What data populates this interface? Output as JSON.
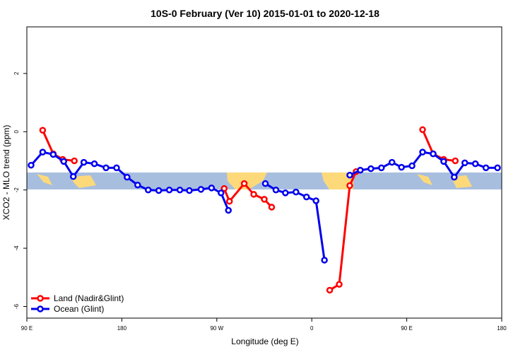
{
  "chart_data": {
    "type": "line",
    "title": "10S-0 February (Ver 10)   2015-01-01 to 2020-12-18",
    "x_label": "Longitude (deg E)",
    "y_label": "XCO2 - MLO trend (ppm)",
    "xlim": [
      90,
      540
    ],
    "xticks": [
      {
        "value": 90,
        "label": "90 E"
      },
      {
        "value": 180,
        "label": "180"
      },
      {
        "value": 270,
        "label": "90 W"
      },
      {
        "value": 360,
        "label": "0"
      },
      {
        "value": 450,
        "label": "90 E"
      },
      {
        "value": 540,
        "label": "180"
      }
    ],
    "ylim": [
      -6.4,
      3.6
    ],
    "yticks": [
      -6,
      -4,
      -2,
      0,
      2
    ],
    "legend": "bottom-left",
    "series": [
      {
        "name": "Land (Nadir&Glint)",
        "color": "#ff0000",
        "x": [
          105,
          115,
          124,
          135,
          null,
          277,
          282,
          296,
          305,
          315,
          322,
          null,
          377,
          386,
          396,
          402,
          null,
          465,
          475,
          485,
          496
        ],
        "values": [
          0.05,
          -0.76,
          -0.95,
          -1.0,
          null,
          -1.95,
          -2.39,
          -1.78,
          -2.15,
          -2.32,
          -2.59,
          null,
          -5.44,
          -5.24,
          -1.85,
          -1.37,
          null,
          0.07,
          -0.76,
          -0.95,
          -1.0
        ]
      },
      {
        "name": "Ocean (Glint)",
        "color": "#0000ee",
        "x": [
          94,
          105,
          115,
          125,
          134,
          144,
          154,
          165,
          175,
          185,
          195,
          205,
          215,
          225,
          235,
          244,
          255,
          265,
          274,
          281,
          null,
          316,
          326,
          335,
          345,
          355,
          364,
          372,
          null,
          396,
          406,
          416,
          426,
          436,
          445,
          455,
          465,
          475,
          485,
          495,
          505,
          515,
          525,
          536
        ],
        "values": [
          -1.15,
          -0.7,
          -0.78,
          -1.02,
          -1.54,
          -1.05,
          -1.1,
          -1.24,
          -1.24,
          -1.56,
          -1.83,
          -2.0,
          -2.02,
          -2.0,
          -2.0,
          -2.02,
          -1.98,
          -1.93,
          -2.1,
          -2.7,
          null,
          -1.78,
          -2.0,
          -2.1,
          -2.07,
          -2.24,
          -2.37,
          -4.41,
          null,
          -1.49,
          -1.32,
          -1.27,
          -1.24,
          -1.05,
          -1.22,
          -1.17,
          -0.7,
          -0.76,
          -1.02,
          -1.56,
          -1.07,
          -1.1,
          -1.24,
          -1.24
        ]
      }
    ]
  }
}
